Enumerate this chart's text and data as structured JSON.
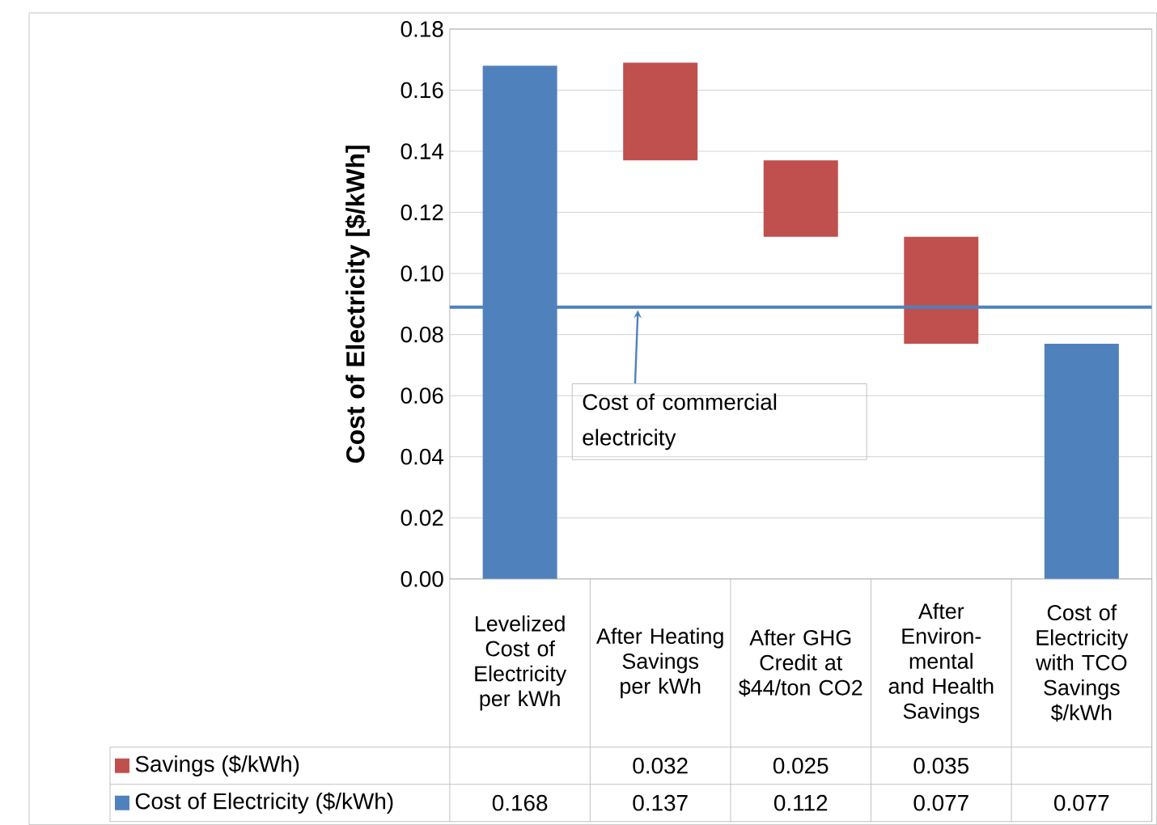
{
  "chart_data": {
    "type": "bar",
    "ylabel": "Cost of Electricity [$/kWh]",
    "categories": [
      "Levelized Cost of Electricity per kWh",
      "After Heating Savings per kWh",
      "After GHG Credit at $44/ton CO2",
      "After Environ-mental and Health Savings",
      "Cost of Electricity with TCO Savings $/kWh"
    ],
    "series": [
      {
        "name": "Savings ($/kWh)",
        "color": "#c0504d",
        "values": [
          null,
          0.032,
          0.025,
          0.035,
          null
        ],
        "base": [
          null,
          0.137,
          0.112,
          0.077,
          null
        ],
        "value_labels": [
          null,
          "0.032",
          "0.025",
          "0.035",
          null
        ]
      },
      {
        "name": "Cost of Electricity ($/kWh)",
        "color": "#4f81bd",
        "values": [
          0.168,
          null,
          null,
          null,
          0.077
        ],
        "value_labels": [
          "0.168",
          "0.137",
          "0.112",
          "0.077",
          "0.077"
        ]
      }
    ],
    "ylim": [
      0,
      0.18
    ],
    "yticks": [
      {
        "value": 0,
        "label": "0.00"
      },
      {
        "value": 0.02,
        "label": "0.02"
      },
      {
        "value": 0.04,
        "label": "0.04"
      },
      {
        "value": 0.06,
        "label": "0.06"
      },
      {
        "value": 0.08,
        "label": "0.08"
      },
      {
        "value": 0.1,
        "label": "0.10"
      },
      {
        "value": 0.12,
        "label": "0.12"
      },
      {
        "value": 0.14,
        "label": "0.14"
      },
      {
        "value": 0.16,
        "label": "0.16"
      },
      {
        "value": 0.18,
        "label": "0.18"
      }
    ],
    "ref_lines": [
      {
        "axis": "y",
        "value": 0.089,
        "label": "Cost of commercial electricity",
        "color": "#4f81bd"
      }
    ],
    "grid": "y",
    "legend": "bottom"
  }
}
